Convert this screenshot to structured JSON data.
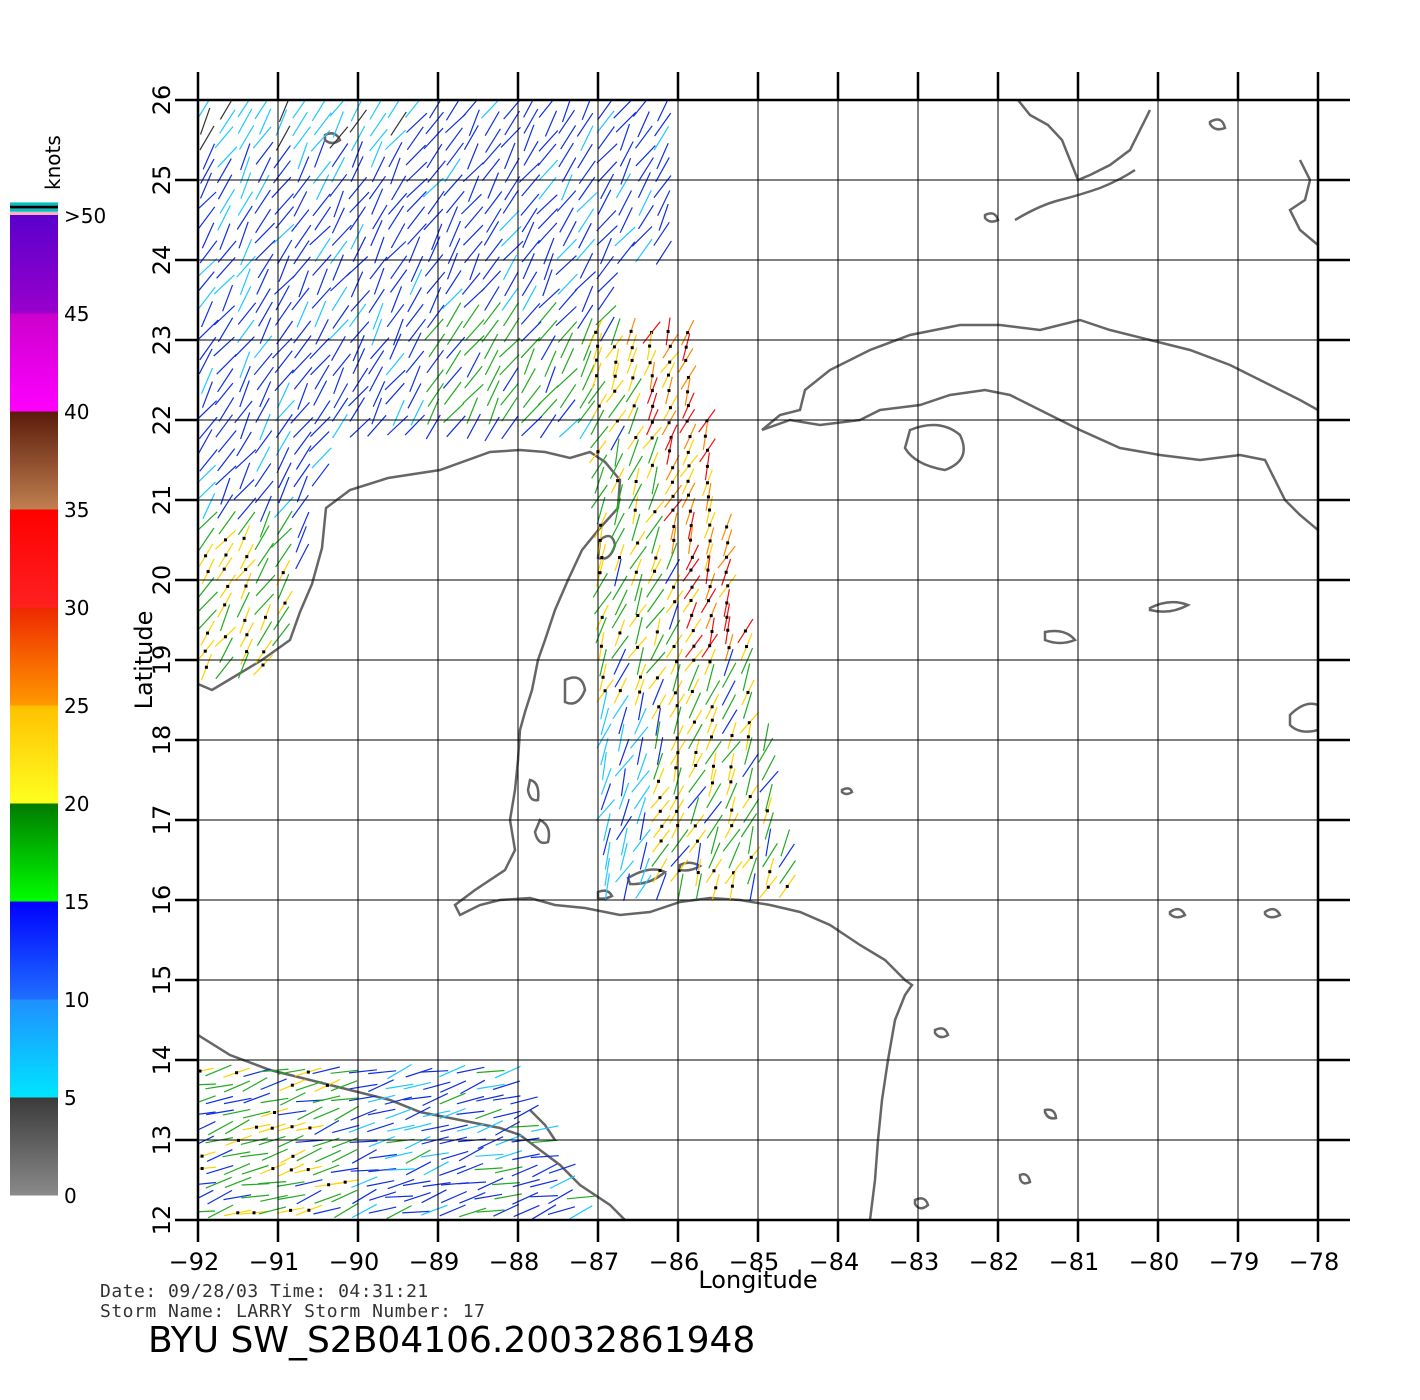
{
  "map": {
    "lon_range": [
      -92,
      -78
    ],
    "lat_range": [
      12,
      26
    ],
    "lon_ticks": [
      "-92",
      "-91",
      "-90",
      "-89",
      "-88",
      "-87",
      "-86",
      "-85",
      "-84",
      "-83",
      "-82",
      "-81",
      "-80",
      "-79",
      "-78"
    ],
    "lat_ticks": [
      "12",
      "13",
      "14",
      "15",
      "16",
      "17",
      "18",
      "19",
      "20",
      "21",
      "22",
      "23",
      "24",
      "25",
      "26"
    ],
    "x_label": "Longitude",
    "y_label": "Latitude",
    "grid": true,
    "coast_color": "#666666",
    "grid_color": "#000000"
  },
  "colorbar": {
    "title": "knots",
    "labels": [
      ">50",
      "45",
      "40",
      "35",
      "30",
      "25",
      "20",
      "15",
      "10",
      "5",
      "0"
    ],
    "bands": [
      {
        "from": 0,
        "to": 5,
        "top": "#3a3a3a",
        "bottom": "#8a8a8a"
      },
      {
        "from": 5,
        "to": 10,
        "top": "#1f8fff",
        "bottom": "#00e5ff"
      },
      {
        "from": 10,
        "to": 15,
        "top": "#0000ff",
        "bottom": "#1f6fff"
      },
      {
        "from": 15,
        "to": 20,
        "top": "#007a00",
        "bottom": "#00ff00"
      },
      {
        "from": 20,
        "to": 25,
        "top": "#ffc000",
        "bottom": "#ffff20"
      },
      {
        "from": 25,
        "to": 30,
        "top": "#ee2800",
        "bottom": "#ff9900"
      },
      {
        "from": 30,
        "to": 35,
        "top": "#ff0000",
        "bottom": "#ff2020"
      },
      {
        "from": 35,
        "to": 40,
        "top": "#5a1a0a",
        "bottom": "#c08050"
      },
      {
        "from": 40,
        "to": 45,
        "top": "#cc00cc",
        "bottom": "#ff00ff"
      },
      {
        "from": 45,
        "to": 50,
        "top": "#5a00cc",
        "bottom": "#9900cc"
      }
    ],
    "top_stripes": [
      "#ffb0c0",
      "#00c0c0",
      "#000000",
      "#00c0c0"
    ]
  },
  "info": {
    "date_line": "Date: 09/28/03   Time: 04:31:21",
    "storm_line": "Storm Name: LARRY   Storm Number: 17",
    "product": "BYU SW_S2B04106.20032861948"
  }
}
